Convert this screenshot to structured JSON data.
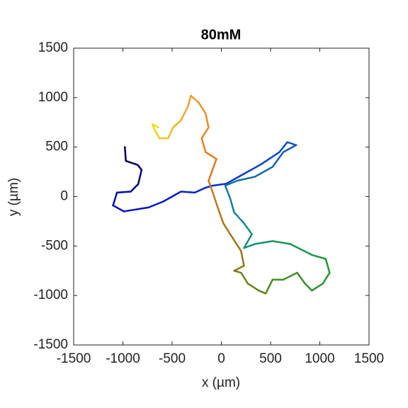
{
  "chart_data": {
    "type": "line",
    "title": "80mM",
    "x_label": "x (µm)",
    "y_label": "y (µm)",
    "x": [
      -980,
      -970,
      -850,
      -810,
      -845,
      -920,
      -1060,
      -1100,
      -990,
      -740,
      -590,
      -410,
      -270,
      -160,
      -90,
      50,
      230,
      410,
      590,
      670,
      760,
      630,
      520,
      340,
      160,
      40,
      90,
      130,
      230,
      310,
      230,
      340,
      520,
      700,
      920,
      1060,
      1100,
      1030,
      920,
      850,
      770,
      630,
      520,
      450,
      380,
      270,
      200,
      130,
      230,
      200,
      90,
      20,
      -30,
      -90,
      -130,
      -90,
      -50,
      -160,
      -200,
      -130,
      -160,
      -230,
      -310,
      -340,
      -410,
      -490,
      -540,
      -630,
      -670,
      -700,
      -640
    ],
    "y": [
      500,
      360,
      320,
      270,
      125,
      50,
      40,
      -90,
      -150,
      -110,
      -50,
      50,
      40,
      90,
      110,
      130,
      230,
      330,
      450,
      550,
      520,
      450,
      300,
      200,
      160,
      110,
      -20,
      -160,
      -270,
      -380,
      -520,
      -480,
      -450,
      -480,
      -590,
      -630,
      -770,
      -880,
      -950,
      -880,
      -770,
      -840,
      -840,
      -980,
      -950,
      -880,
      -770,
      -750,
      -700,
      -550,
      -380,
      -270,
      -130,
      50,
      160,
      270,
      380,
      450,
      590,
      700,
      840,
      950,
      1020,
      910,
      770,
      700,
      590,
      590,
      660,
      730,
      700
    ],
    "colors": [
      "#00004a",
      "#0010b8",
      "#0a2fd0",
      "#1060b0",
      "#108c8c",
      "#1f9a3a",
      "#4a8a20",
      "#90781c",
      "#e07a1c",
      "#f0a030",
      "#f0e010"
    ],
    "xlim": [
      -1500,
      1500
    ],
    "ylim": [
      -1500,
      1500
    ],
    "xticks": [
      -1500,
      -1000,
      -500,
      0,
      500,
      1000,
      1500
    ],
    "yticks": [
      -1500,
      -1000,
      -500,
      0,
      500,
      1000,
      1500
    ]
  }
}
